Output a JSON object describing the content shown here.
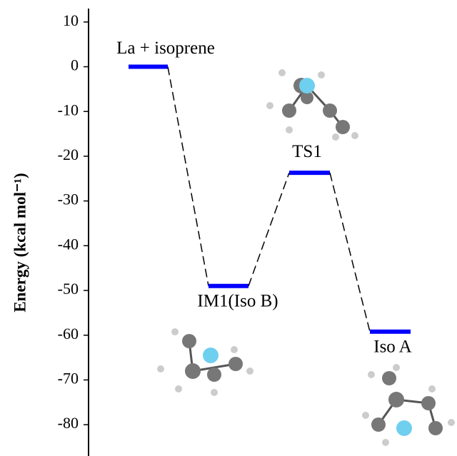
{
  "chart_data": {
    "type": "energy",
    "ylabel": "Energy (kcal mol⁻¹)",
    "categories": [
      "La + isoprene",
      "IM1(Iso B)",
      "TS1",
      "Iso A"
    ],
    "values": [
      0,
      -49,
      -23.7,
      -59.2
    ],
    "color": "#0000ff",
    "ylim": [
      -87,
      13
    ],
    "yticks": [
      10,
      0,
      -10,
      -20,
      -30,
      -40,
      -50,
      -60,
      -70,
      -80
    ]
  }
}
